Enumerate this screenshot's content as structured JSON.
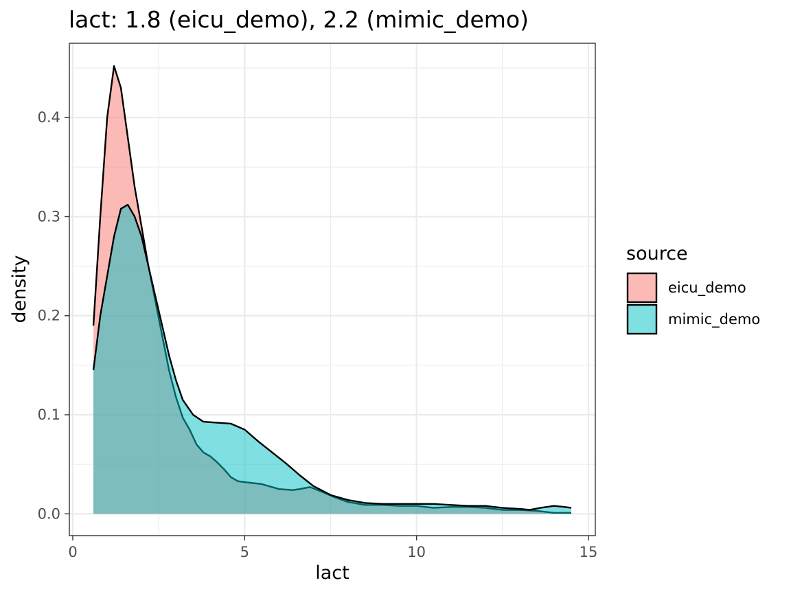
{
  "chart_data": {
    "type": "area",
    "subtype": "density",
    "title": "lact: 1.8 (eicu_demo), 2.2 (mimic_demo)",
    "xlabel": "lact",
    "ylabel": "density",
    "xlim": [
      -0.1,
      15.2
    ],
    "ylim": [
      -0.022,
      0.475
    ],
    "x_ticks": [
      0,
      5,
      10,
      15
    ],
    "x_tick_labels": [
      "0",
      "5",
      "10",
      "15"
    ],
    "y_ticks": [
      0.0,
      0.1,
      0.2,
      0.3,
      0.4
    ],
    "y_tick_labels": [
      "0.0",
      "0.1",
      "0.2",
      "0.3",
      "0.4"
    ],
    "grid": true,
    "legend": {
      "title": "source",
      "position": "right"
    },
    "series": [
      {
        "name": "eicu_demo",
        "color": "#F8766D",
        "points": [
          [
            0.6,
            0.19
          ],
          [
            0.8,
            0.3
          ],
          [
            1.0,
            0.4
          ],
          [
            1.2,
            0.452
          ],
          [
            1.4,
            0.43
          ],
          [
            1.6,
            0.38
          ],
          [
            1.8,
            0.33
          ],
          [
            2.0,
            0.29
          ],
          [
            2.2,
            0.25
          ],
          [
            2.4,
            0.215
          ],
          [
            2.6,
            0.18
          ],
          [
            2.8,
            0.145
          ],
          [
            3.0,
            0.118
          ],
          [
            3.2,
            0.097
          ],
          [
            3.4,
            0.085
          ],
          [
            3.6,
            0.07
          ],
          [
            3.8,
            0.062
          ],
          [
            4.0,
            0.058
          ],
          [
            4.2,
            0.052
          ],
          [
            4.4,
            0.045
          ],
          [
            4.6,
            0.037
          ],
          [
            4.8,
            0.033
          ],
          [
            5.0,
            0.032
          ],
          [
            5.5,
            0.03
          ],
          [
            6.0,
            0.025
          ],
          [
            6.4,
            0.024
          ],
          [
            6.6,
            0.025
          ],
          [
            6.9,
            0.027
          ],
          [
            7.2,
            0.023
          ],
          [
            7.6,
            0.017
          ],
          [
            8.0,
            0.012
          ],
          [
            8.5,
            0.009
          ],
          [
            9.0,
            0.009
          ],
          [
            9.5,
            0.008
          ],
          [
            10.0,
            0.008
          ],
          [
            10.5,
            0.006
          ],
          [
            11.0,
            0.007
          ],
          [
            11.5,
            0.007
          ],
          [
            12.0,
            0.006
          ],
          [
            12.5,
            0.004
          ],
          [
            13.0,
            0.004
          ],
          [
            13.5,
            0.003
          ],
          [
            14.0,
            0.001
          ],
          [
            14.5,
            0.001
          ]
        ]
      },
      {
        "name": "mimic_demo",
        "color": "#00BFC4",
        "points": [
          [
            0.6,
            0.145
          ],
          [
            0.8,
            0.2
          ],
          [
            1.0,
            0.24
          ],
          [
            1.2,
            0.28
          ],
          [
            1.4,
            0.308
          ],
          [
            1.6,
            0.312
          ],
          [
            1.8,
            0.3
          ],
          [
            2.0,
            0.28
          ],
          [
            2.2,
            0.25
          ],
          [
            2.4,
            0.22
          ],
          [
            2.6,
            0.19
          ],
          [
            2.8,
            0.16
          ],
          [
            3.0,
            0.135
          ],
          [
            3.2,
            0.115
          ],
          [
            3.5,
            0.1
          ],
          [
            3.8,
            0.093
          ],
          [
            4.2,
            0.092
          ],
          [
            4.6,
            0.091
          ],
          [
            5.0,
            0.085
          ],
          [
            5.4,
            0.073
          ],
          [
            5.8,
            0.062
          ],
          [
            6.2,
            0.051
          ],
          [
            6.6,
            0.039
          ],
          [
            7.0,
            0.028
          ],
          [
            7.5,
            0.019
          ],
          [
            8.0,
            0.014
          ],
          [
            8.5,
            0.011
          ],
          [
            9.0,
            0.01
          ],
          [
            9.5,
            0.01
          ],
          [
            10.0,
            0.01
          ],
          [
            10.5,
            0.01
          ],
          [
            11.0,
            0.009
          ],
          [
            11.5,
            0.008
          ],
          [
            12.0,
            0.008
          ],
          [
            12.5,
            0.006
          ],
          [
            13.0,
            0.005
          ],
          [
            13.3,
            0.004
          ],
          [
            13.6,
            0.006
          ],
          [
            14.0,
            0.008
          ],
          [
            14.3,
            0.007
          ],
          [
            14.5,
            0.006
          ]
        ]
      }
    ]
  }
}
